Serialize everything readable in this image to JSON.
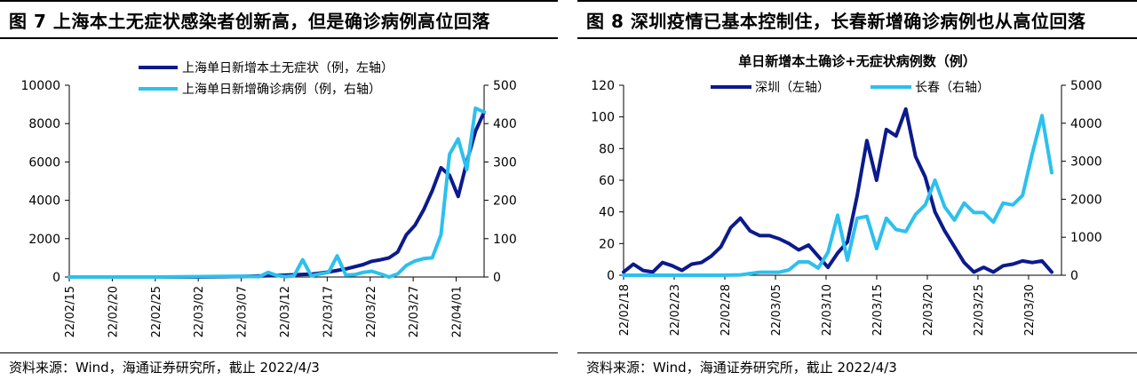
{
  "panels": [
    {
      "id": "left",
      "title": "图 7  上海本土无症状感染者创新高，但是确诊病例高位回落",
      "source": "资料来源：Wind，海通证券研究所，截止 2022/4/3"
    },
    {
      "id": "right",
      "title": "图 8  深圳疫情已基本控制住，长春新增确诊病例也从高位回落",
      "source": "资料来源：Wind，海通证券研究所，截止 2022/4/3"
    }
  ],
  "colors": {
    "dark_navy": "#0b1a8c",
    "light_blue": "#2cc0ee",
    "axis": "#000000"
  },
  "chart_data": [
    {
      "type": "line",
      "title": "",
      "legend_position": "top",
      "categories": [
        "22/02/15",
        "22/02/20",
        "22/02/25",
        "22/03/02",
        "22/03/07",
        "22/03/12",
        "22/03/17",
        "22/03/22",
        "22/03/27",
        "22/04/01"
      ],
      "y_left": {
        "min": 0,
        "max": 10000,
        "ticks": [
          "0",
          "2000",
          "4000",
          "6000",
          "8000",
          "10000"
        ]
      },
      "y_right": {
        "min": 0,
        "max": 500,
        "ticks": [
          "0",
          "100",
          "200",
          "300",
          "400",
          "500"
        ]
      },
      "x_range": [
        0,
        48
      ],
      "series": [
        {
          "name": "上海单日新增本土无症状（例，左轴）",
          "axis": "left",
          "color": "#0b1a8c",
          "x": [
            0,
            10,
            15,
            20,
            24,
            28,
            30,
            32,
            34,
            35,
            36,
            37,
            38,
            39,
            40,
            41,
            42,
            43,
            44,
            45,
            46,
            47,
            48
          ],
          "values": [
            0,
            0,
            0,
            30,
            80,
            150,
            260,
            420,
            650,
            820,
            900,
            1000,
            1300,
            2200,
            2700,
            3500,
            4500,
            5700,
            5300,
            4200,
            6000,
            7600,
            8600
          ]
        },
        {
          "name": "上海单日新增确诊病例（例，右轴）",
          "axis": "right",
          "color": "#2cc0ee",
          "x": [
            0,
            10,
            20,
            22,
            23,
            24,
            25,
            26,
            27,
            28,
            29,
            30,
            31,
            32,
            33,
            34,
            35,
            36,
            37,
            38,
            39,
            40,
            41,
            42,
            43,
            44,
            45,
            46,
            47,
            48
          ],
          "values": [
            0,
            0,
            2,
            1,
            12,
            4,
            1,
            3,
            45,
            3,
            8,
            12,
            55,
            5,
            6,
            12,
            15,
            8,
            0,
            8,
            30,
            42,
            48,
            50,
            110,
            320,
            360,
            280,
            440,
            430
          ]
        }
      ]
    },
    {
      "type": "line",
      "title": "单日新增本土确诊+无症状病例数（例）",
      "legend_position": "top",
      "categories": [
        "22/02/18",
        "22/02/23",
        "22/02/28",
        "22/03/05",
        "22/03/10",
        "22/03/15",
        "22/03/20",
        "22/03/25",
        "22/03/30"
      ],
      "y_left": {
        "min": 0,
        "max": 120,
        "ticks": [
          "0",
          "20",
          "40",
          "60",
          "80",
          "100",
          "120"
        ]
      },
      "y_right": {
        "min": 0,
        "max": 5000,
        "ticks": [
          "0",
          "1000",
          "2000",
          "3000",
          "4000",
          "5000"
        ]
      },
      "x_range": [
        0,
        45
      ],
      "series": [
        {
          "name": "深圳（左轴）",
          "axis": "left",
          "color": "#0b1a8c",
          "x": [
            0,
            1,
            2,
            3,
            4,
            5,
            6,
            7,
            8,
            9,
            10,
            11,
            12,
            13,
            14,
            15,
            16,
            17,
            18,
            19,
            20,
            21,
            22,
            23,
            24,
            25,
            26,
            27,
            28,
            29,
            30,
            31,
            32,
            33,
            34,
            35,
            36,
            37,
            38,
            39,
            40,
            41,
            42,
            43,
            44
          ],
          "values": [
            2,
            7,
            3,
            2,
            8,
            6,
            3,
            7,
            8,
            12,
            18,
            30,
            36,
            28,
            25,
            25,
            23,
            20,
            16,
            19,
            12,
            5,
            14,
            21,
            50,
            85,
            60,
            92,
            88,
            105,
            75,
            62,
            40,
            28,
            18,
            8,
            2,
            5,
            2,
            6,
            7,
            9,
            8,
            9,
            2
          ]
        },
        {
          "name": "长春（右轴）",
          "axis": "right",
          "color": "#2cc0ee",
          "x": [
            0,
            5,
            10,
            12,
            14,
            16,
            17,
            18,
            19,
            20,
            21,
            22,
            23,
            24,
            25,
            26,
            27,
            28,
            29,
            30,
            31,
            32,
            33,
            34,
            35,
            36,
            37,
            38,
            39,
            40,
            41,
            42,
            43,
            44
          ],
          "values": [
            0,
            0,
            0,
            10,
            80,
            80,
            140,
            350,
            350,
            190,
            600,
            1580,
            400,
            1500,
            1550,
            700,
            1500,
            1200,
            1150,
            1600,
            1850,
            2500,
            1800,
            1450,
            1900,
            1650,
            1650,
            1400,
            1900,
            1850,
            2100,
            3200,
            4200,
            2700
          ]
        }
      ]
    }
  ]
}
